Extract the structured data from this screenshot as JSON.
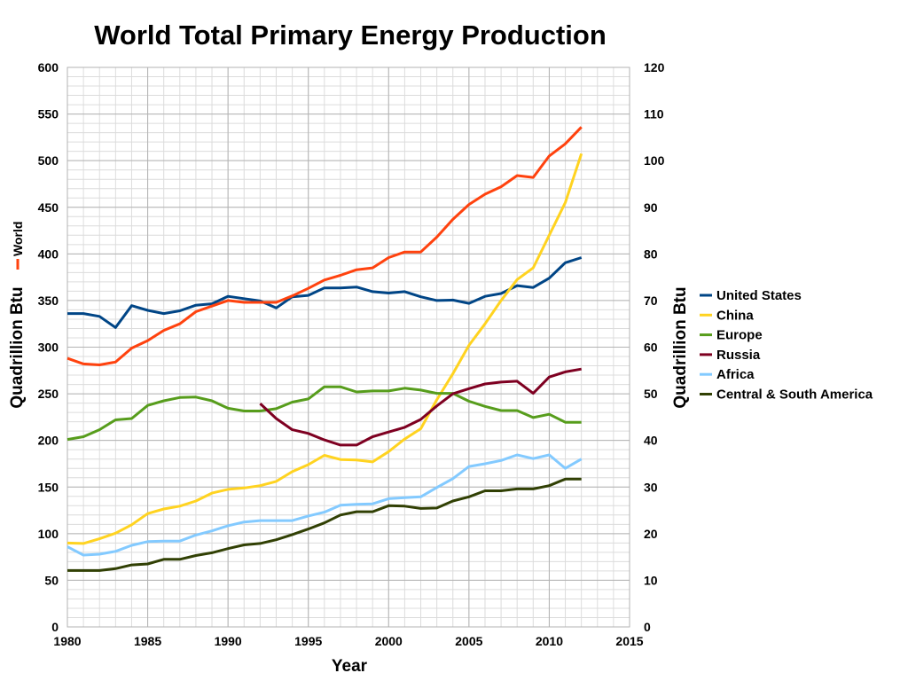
{
  "chart_data": {
    "type": "line",
    "title": "World Total Primary Energy Production",
    "xlabel": "Year",
    "ylabel_left": "Quadrillion Btu",
    "ylabel_left_series": "World",
    "ylabel_right": "Quadrillion Btu",
    "xlim": [
      1980,
      2015
    ],
    "ylim_left": [
      0,
      600
    ],
    "ylim_right": [
      0,
      120
    ],
    "x_ticks": [
      "1980",
      "1985",
      "1990",
      "1995",
      "2000",
      "2005",
      "2010",
      "2015"
    ],
    "y_left_ticks": [
      "0",
      "50",
      "100",
      "150",
      "200",
      "250",
      "300",
      "350",
      "400",
      "450",
      "500",
      "550",
      "600"
    ],
    "y_right_ticks": [
      "0",
      "10",
      "20",
      "30",
      "40",
      "50",
      "60",
      "70",
      "80",
      "90",
      "100",
      "110",
      "120"
    ],
    "grid": true,
    "legend_position": "right",
    "x": [
      1980,
      1981,
      1982,
      1983,
      1984,
      1985,
      1986,
      1987,
      1988,
      1989,
      1990,
      1991,
      1992,
      1993,
      1994,
      1995,
      1996,
      1997,
      1998,
      1999,
      2000,
      2001,
      2002,
      2003,
      2004,
      2005,
      2006,
      2007,
      2008,
      2009,
      2010,
      2011,
      2012
    ],
    "world": {
      "name": "World",
      "axis": "left",
      "color": "#ff420e",
      "values": [
        288,
        282,
        281,
        284,
        299,
        307,
        318,
        325,
        338,
        344,
        350,
        348,
        348,
        348,
        355,
        363,
        372,
        377,
        383,
        385,
        396,
        402,
        402,
        418,
        437,
        453,
        464,
        472,
        484,
        482,
        505,
        518,
        536
      ]
    },
    "series": [
      {
        "name": "United States",
        "axis": "right",
        "color": "#004586",
        "values": [
          67.2,
          67.2,
          66.6,
          64.2,
          68.9,
          67.9,
          67.2,
          67.8,
          69.0,
          69.3,
          70.9,
          70.4,
          69.9,
          68.4,
          70.8,
          71.1,
          72.7,
          72.7,
          72.9,
          71.9,
          71.6,
          71.9,
          70.8,
          70.0,
          70.1,
          69.4,
          70.9,
          71.5,
          73.2,
          72.8,
          74.8,
          78.1,
          79.2
        ]
      },
      {
        "name": "China",
        "axis": "right",
        "color": "#ffd320",
        "values": [
          18.0,
          17.9,
          18.9,
          20.1,
          21.9,
          24.3,
          25.3,
          25.9,
          27.0,
          28.7,
          29.5,
          29.8,
          30.3,
          31.2,
          33.3,
          34.8,
          36.8,
          35.9,
          35.8,
          35.4,
          37.6,
          40.3,
          42.5,
          48.7,
          54.3,
          60.4,
          65.0,
          70.0,
          74.5,
          77.0,
          84.0,
          91.0,
          101.5
        ]
      },
      {
        "name": "Europe",
        "axis": "right",
        "color": "#579d1c",
        "values": [
          40.2,
          40.8,
          42.3,
          44.4,
          44.7,
          47.5,
          48.5,
          49.2,
          49.3,
          48.5,
          46.9,
          46.3,
          46.3,
          46.8,
          48.2,
          48.9,
          51.5,
          51.5,
          50.4,
          50.6,
          50.6,
          51.2,
          50.8,
          50.1,
          50.1,
          48.4,
          47.3,
          46.4,
          46.4,
          44.9,
          45.6,
          43.9,
          43.9
        ]
      },
      {
        "name": "Russia",
        "axis": "right",
        "color": "#7e0021",
        "values": [
          null,
          null,
          null,
          null,
          null,
          null,
          null,
          null,
          null,
          null,
          null,
          null,
          47.9,
          44.7,
          42.3,
          41.5,
          40.1,
          39.0,
          39.0,
          40.8,
          41.8,
          42.8,
          44.5,
          47.4,
          50.0,
          51.1,
          52.1,
          52.5,
          52.7,
          50.1,
          53.6,
          54.7,
          55.3
        ]
      },
      {
        "name": "Africa",
        "axis": "right",
        "color": "#83caff",
        "values": [
          17.2,
          15.4,
          15.6,
          16.2,
          17.5,
          18.3,
          18.4,
          18.4,
          19.7,
          20.6,
          21.7,
          22.5,
          22.8,
          22.8,
          22.8,
          23.8,
          24.6,
          26.1,
          26.3,
          26.4,
          27.5,
          27.7,
          27.9,
          29.9,
          31.8,
          34.4,
          35.0,
          35.7,
          36.9,
          36.1,
          36.9,
          34.0,
          36.0
        ]
      },
      {
        "name": "Central & South America",
        "axis": "right",
        "color": "#314004",
        "values": [
          12.1,
          12.1,
          12.1,
          12.5,
          13.3,
          13.5,
          14.5,
          14.5,
          15.3,
          15.9,
          16.8,
          17.6,
          17.9,
          18.7,
          19.8,
          21.0,
          22.3,
          24.0,
          24.7,
          24.7,
          26.0,
          25.9,
          25.4,
          25.5,
          27.0,
          27.9,
          29.2,
          29.2,
          29.6,
          29.6,
          30.3,
          31.7,
          31.7
        ]
      }
    ]
  }
}
